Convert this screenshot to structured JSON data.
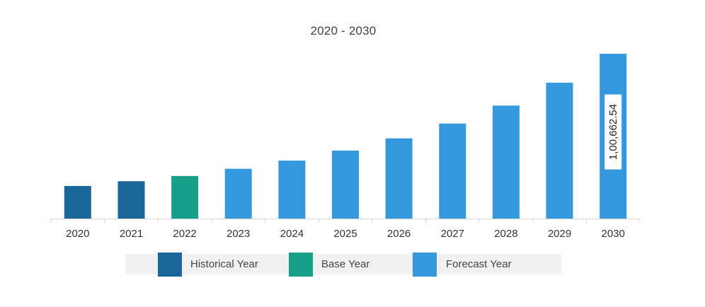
{
  "chart_data": {
    "type": "bar",
    "title": "2020 - 2030",
    "categories": [
      "2020",
      "2021",
      "2022",
      "2023",
      "2024",
      "2025",
      "2026",
      "2027",
      "2028",
      "2029",
      "2030"
    ],
    "values": [
      19900,
      22800,
      26000,
      30400,
      35400,
      41500,
      49000,
      58000,
      69000,
      83000,
      100662.54
    ],
    "category_type": [
      "Historical Year",
      "Historical Year",
      "Base Year",
      "Forecast Year",
      "Forecast Year",
      "Forecast Year",
      "Forecast Year",
      "Forecast Year",
      "Forecast Year",
      "Forecast Year",
      "Forecast Year"
    ],
    "data_labels": {
      "10": "1,00,662.54"
    },
    "ylim": [
      0,
      100662.54
    ],
    "y_axis_visible": false,
    "grid": false,
    "legend_position": "bottom",
    "series_colors": {
      "Historical Year": "#1b6698",
      "Base Year": "#16a08a",
      "Forecast Year": "#3398dc"
    }
  },
  "legend": {
    "items": [
      {
        "label": "Historical Year",
        "color": "#1b6698"
      },
      {
        "label": "Base Year",
        "color": "#16a08a"
      },
      {
        "label": "Forecast Year",
        "color": "#3398dc"
      }
    ]
  }
}
